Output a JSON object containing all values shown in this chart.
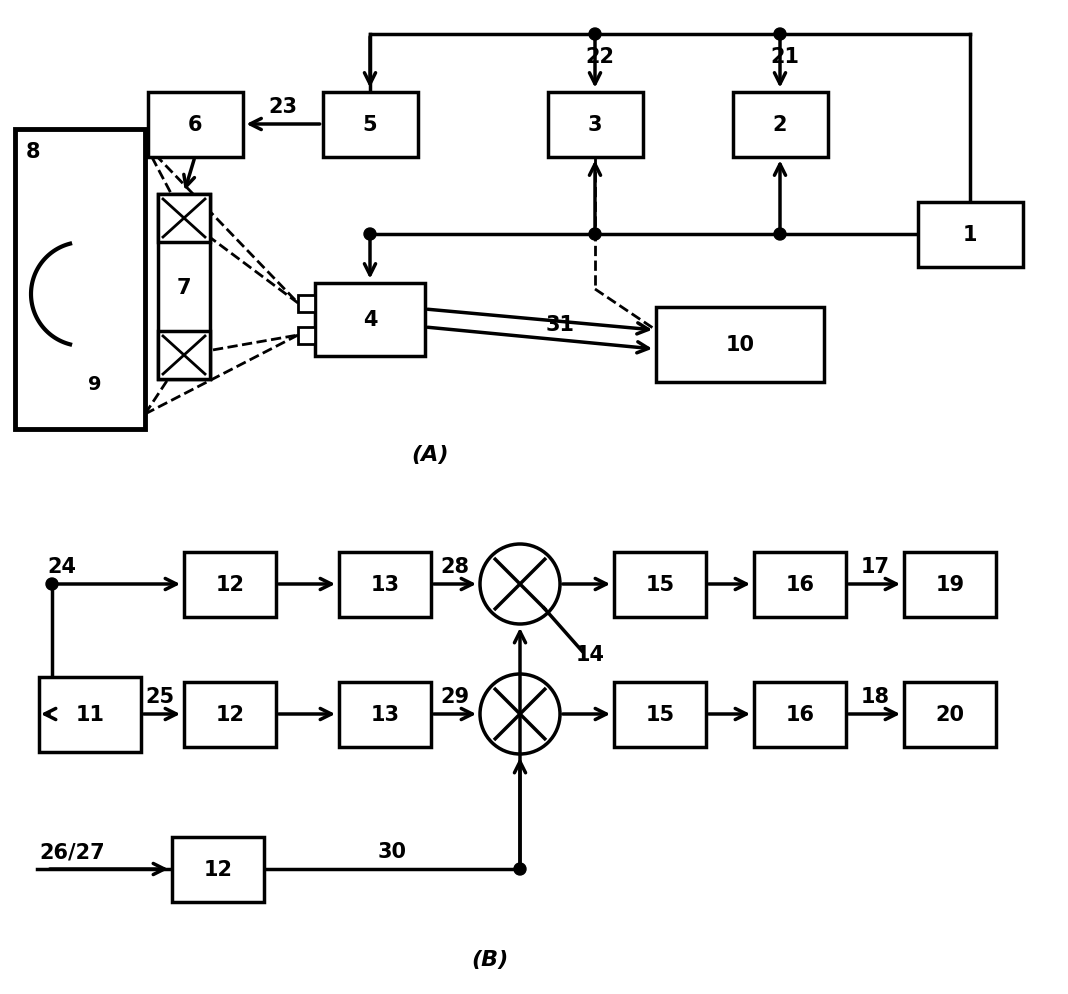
{
  "bg_color": "#ffffff",
  "line_color": "#000000",
  "fig_width": 10.68,
  "fig_height": 9.95,
  "dpi": 100
}
